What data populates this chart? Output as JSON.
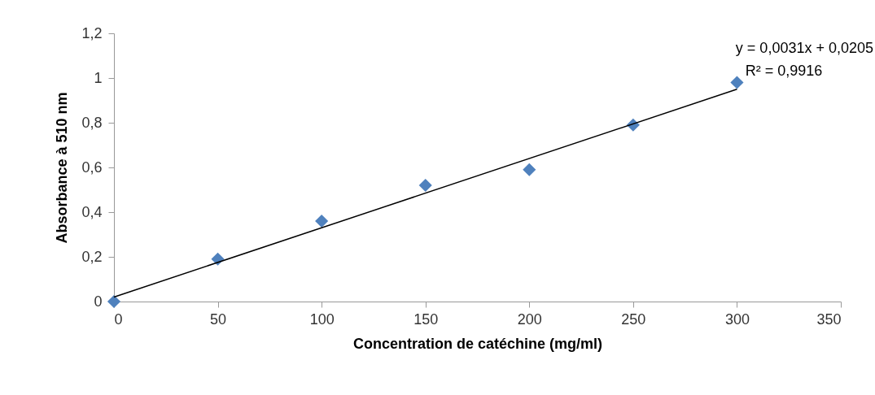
{
  "chart_data": {
    "type": "scatter",
    "xlabel": "Concentration de catéchine (mg/ml)",
    "ylabel": "Absorbance à 510 nm",
    "x": [
      0,
      50,
      100,
      150,
      200,
      250,
      300
    ],
    "series": [
      {
        "color": "#4f81bd",
        "marker": "diamond",
        "values": [
          0,
          0.19,
          0.36,
          0.52,
          0.59,
          0.79,
          0.98
        ]
      },
      {
        "type": "line",
        "color": "#000000",
        "x": [
          0,
          300
        ],
        "values": [
          0.02,
          0.95
        ]
      }
    ],
    "xlim": [
      0,
      350
    ],
    "xticks": [
      0,
      50,
      100,
      150,
      200,
      250,
      300,
      350
    ],
    "ylim": [
      0,
      1.2
    ],
    "yticks": [
      0,
      {
        "value": 0.2,
        "label": "0,2"
      },
      {
        "value": 0.4,
        "label": "0,4"
      },
      {
        "value": 0.6,
        "label": "0,6"
      },
      {
        "value": 0.8,
        "label": "0,8"
      },
      1,
      {
        "value": 1.2,
        "label": "1,2"
      }
    ],
    "grid": false,
    "annotations": [
      "y = 0,0031x + 0,0205",
      "R² = 0,9916"
    ]
  }
}
